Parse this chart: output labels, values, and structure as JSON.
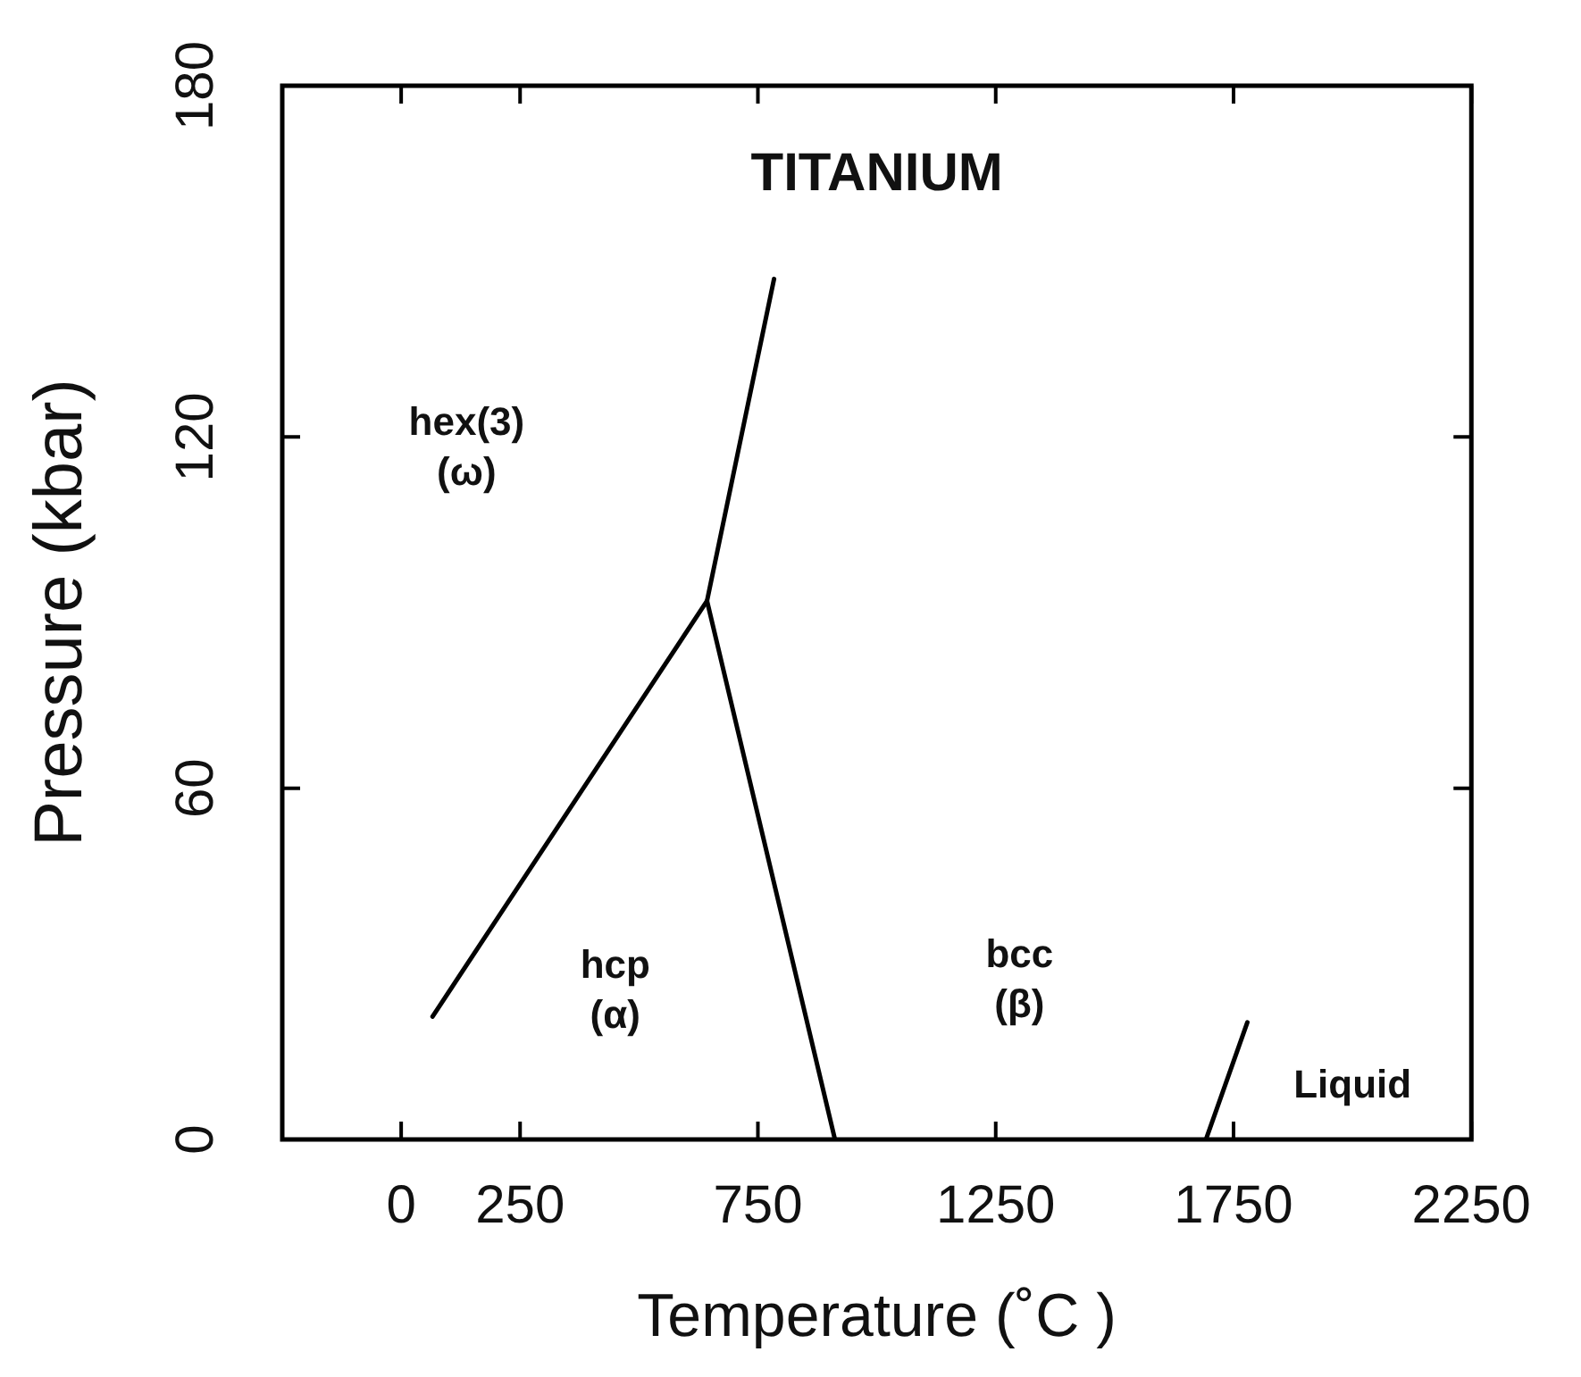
{
  "chart_data": {
    "type": "line",
    "title": "TITANIUM",
    "xlabel": "Temperature (˚C )",
    "ylabel": "Pressure (kbar)",
    "xlim": [
      -250,
      2250
    ],
    "xticks": [
      0,
      250,
      750,
      1250,
      1750,
      2250
    ],
    "ylim": [
      0,
      180
    ],
    "yticks": [
      0,
      60,
      120,
      180
    ],
    "grid": false,
    "legend": false,
    "marker": "none",
    "line_style": "solid",
    "series": [
      {
        "color": "#000000",
        "x": [
          66,
          643,
          912
        ],
        "values": [
          21,
          92,
          0
        ]
      },
      {
        "color": "#000000",
        "x": [
          643,
          784
        ],
        "values": [
          92,
          147
        ]
      },
      {
        "color": "#000000",
        "x": [
          1692,
          1779
        ],
        "values": [
          0,
          20
        ]
      }
    ],
    "annotations": [
      "hex(3)\n(ω)",
      "hcp\n(α)",
      "bcc\n(β)",
      "Liquid"
    ]
  }
}
